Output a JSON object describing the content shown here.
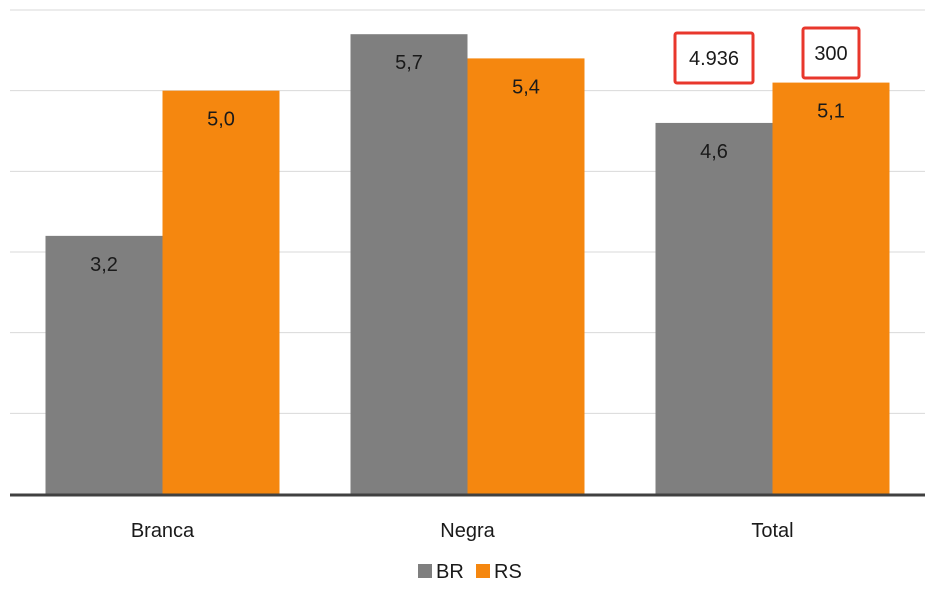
{
  "chart_data": {
    "type": "bar",
    "title": "",
    "xlabel": "",
    "ylabel": "",
    "ylim": [
      0,
      6
    ],
    "grid": true,
    "legend_position": "bottom",
    "categories": [
      "Branca",
      "Negra",
      "Total"
    ],
    "series": [
      {
        "name": "BR",
        "color": "#7f7f7f",
        "values": [
          3.2,
          5.7,
          4.6
        ],
        "labels": [
          "3,2",
          "5,7",
          "4,6"
        ]
      },
      {
        "name": "RS",
        "color": "#f5870f",
        "values": [
          5.0,
          5.4,
          5.1
        ],
        "labels": [
          "5,0",
          "5,4",
          "5,1"
        ]
      }
    ],
    "annotations": [
      {
        "category": "Total",
        "series": "BR",
        "text": "4.936",
        "border_color": "#e8372c"
      },
      {
        "category": "Total",
        "series": "RS",
        "text": "300",
        "border_color": "#e8372c"
      }
    ]
  }
}
